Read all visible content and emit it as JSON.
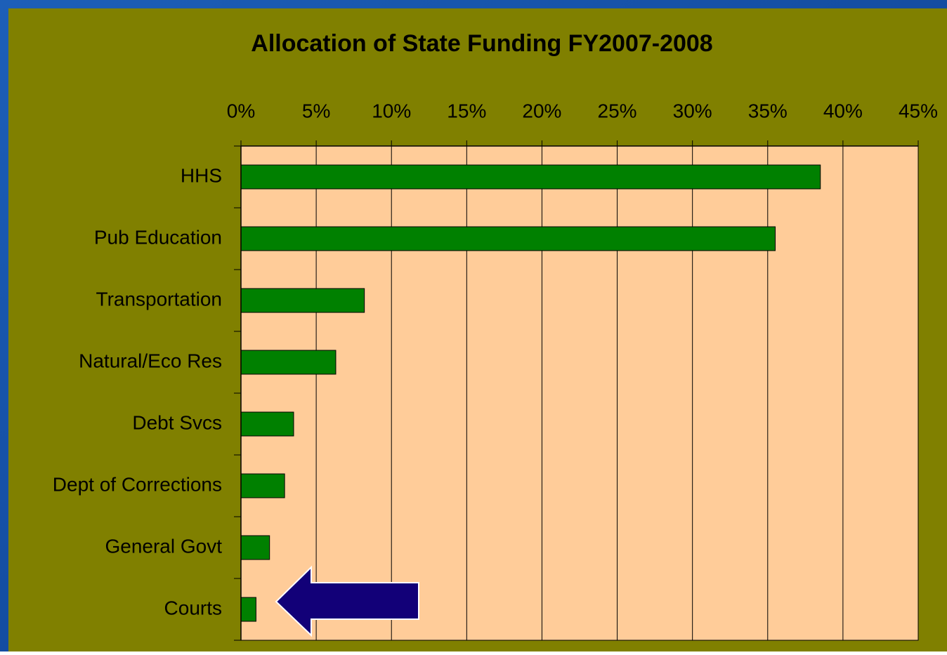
{
  "chart_data": {
    "type": "barh",
    "title": "Allocation of State Funding FY2007-2008",
    "categories": [
      "HHS",
      "Pub Education",
      "Transportation",
      "Natural/Eco Res",
      "Debt Svcs",
      "Dept of Corrections",
      "General Govt",
      "Courts"
    ],
    "values": [
      38.5,
      35.5,
      8.2,
      6.3,
      3.5,
      2.9,
      1.9,
      1.0
    ],
    "color": "#008000",
    "xlim": [
      0,
      45
    ],
    "xticks": [
      {
        "value": 0,
        "label": "0%"
      },
      {
        "value": 5,
        "label": "5%"
      },
      {
        "value": 10,
        "label": "10%"
      },
      {
        "value": 15,
        "label": "15%"
      },
      {
        "value": 20,
        "label": "20%"
      },
      {
        "value": 25,
        "label": "25%"
      },
      {
        "value": 30,
        "label": "30%"
      },
      {
        "value": 35,
        "label": "35%"
      },
      {
        "value": 40,
        "label": "40%"
      },
      {
        "value": 45,
        "label": "45%"
      }
    ],
    "grid": true
  }
}
